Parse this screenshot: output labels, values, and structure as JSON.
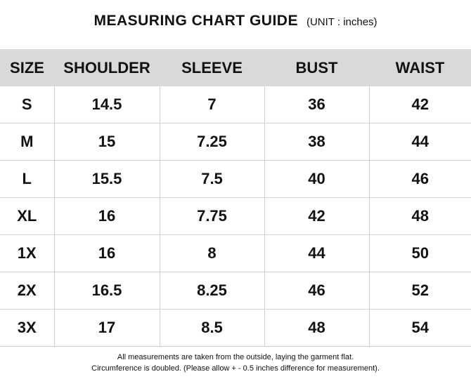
{
  "header": {
    "title": "MEASURING CHART GUIDE",
    "unit": "(UNIT : inches)"
  },
  "table": {
    "columns": [
      "SIZE",
      "SHOULDER",
      "SLEEVE",
      "BUST",
      "WAIST"
    ],
    "rows": [
      [
        "S",
        "14.5",
        "7",
        "36",
        "42"
      ],
      [
        "M",
        "15",
        "7.25",
        "38",
        "44"
      ],
      [
        "L",
        "15.5",
        "7.5",
        "40",
        "46"
      ],
      [
        "XL",
        "16",
        "7.75",
        "42",
        "48"
      ],
      [
        "1X",
        "16",
        "8",
        "44",
        "50"
      ],
      [
        "2X",
        "16.5",
        "8.25",
        "46",
        "52"
      ],
      [
        "3X",
        "17",
        "8.5",
        "48",
        "54"
      ]
    ]
  },
  "footer": {
    "line1": "All measurements are taken from the outside, laying the garment flat.",
    "line2": "Circumference is doubled. (Please allow + - 0.5 inches difference for measurement)."
  },
  "colors": {
    "header_background": "#d9d9d9",
    "grid_line": "#d0d0d0",
    "text": "#111111"
  }
}
